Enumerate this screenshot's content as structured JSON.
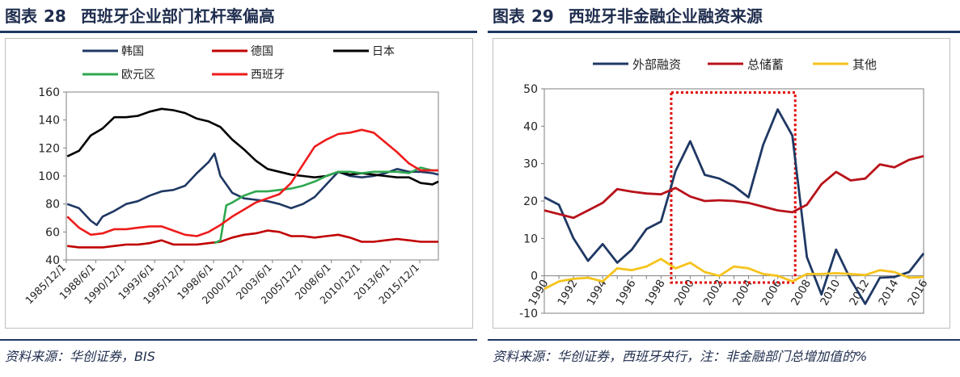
{
  "figure28": {
    "title_prefix": "图表",
    "number": "28",
    "title": "西班牙企业部门杠杆率偏高",
    "source": "资料来源：华创证券，BIS"
  },
  "figure29": {
    "title_prefix": "图表",
    "number": "29",
    "title": "西班牙非金融企业融资来源",
    "source": "资料来源：华创证券，西班牙央行，注：非金融部门总增加值的%"
  },
  "chart_data": [
    {
      "type": "line",
      "ylim": [
        40,
        160
      ],
      "yticks": [
        40,
        60,
        80,
        100,
        120,
        140,
        160
      ],
      "xlim": [
        1985.92,
        2017.5
      ],
      "xtick_labels": [
        "1985/12/1",
        "1988/6/1",
        "1990/12/1",
        "1993/6/1",
        "1995/12/1",
        "1998/6/1",
        "2000/12/1",
        "2003/6/1",
        "2005/12/1",
        "2008/6/1",
        "2010/12/1",
        "2013/6/1",
        "2015/12/1"
      ],
      "xtick_values": [
        1985.92,
        1988.42,
        1990.92,
        1993.42,
        1995.92,
        1998.42,
        2000.92,
        2003.42,
        2005.92,
        2008.42,
        2010.92,
        2013.42,
        2015.92
      ],
      "legend": [
        {
          "name": "韩国",
          "color": "#1f3864"
        },
        {
          "name": "德国",
          "color": "#c00000"
        },
        {
          "name": "日本",
          "color": "#000000"
        },
        {
          "name": "欧元区",
          "color": "#2ea84f"
        },
        {
          "name": "西班牙",
          "color": "#ee1c1c"
        }
      ],
      "series": [
        {
          "name": "韩国",
          "color": "#1f3864",
          "x": [
            1986,
            1987,
            1988,
            1988.5,
            1989,
            1990,
            1991,
            1992,
            1993,
            1994,
            1995,
            1996,
            1997,
            1998,
            1998.5,
            1999,
            2000,
            2001,
            2002,
            2003,
            2004,
            2005,
            2006,
            2007,
            2008,
            2009,
            2010,
            2011,
            2012,
            2013,
            2014,
            2015,
            2016,
            2017,
            2017.5
          ],
          "values": [
            80,
            77,
            68,
            65,
            71,
            75,
            80,
            82,
            86,
            89,
            90,
            93,
            102,
            110,
            116,
            100,
            88,
            84,
            83,
            82,
            80,
            77,
            80,
            85,
            94,
            103,
            100,
            99,
            100,
            102,
            105,
            103,
            103,
            102,
            101
          ]
        },
        {
          "name": "德国",
          "color": "#c00000",
          "x": [
            1986,
            1987,
            1988,
            1989,
            1990,
            1991,
            1992,
            1993,
            1994,
            1995,
            1996,
            1997,
            1998,
            1999,
            2000,
            2001,
            2002,
            2003,
            2004,
            2005,
            2006,
            2007,
            2008,
            2009,
            2010,
            2011,
            2012,
            2013,
            2014,
            2015,
            2016,
            2017,
            2017.5
          ],
          "values": [
            50,
            49,
            49,
            49,
            50,
            51,
            51,
            52,
            54,
            51,
            51,
            51,
            52,
            53,
            56,
            58,
            59,
            61,
            60,
            57,
            57,
            56,
            57,
            58,
            56,
            53,
            53,
            54,
            55,
            54,
            53,
            53,
            53
          ]
        },
        {
          "name": "日本",
          "color": "#000000",
          "x": [
            1986,
            1987,
            1988,
            1989,
            1990,
            1991,
            1992,
            1993,
            1994,
            1995,
            1996,
            1997,
            1998,
            1999,
            2000,
            2001,
            2002,
            2003,
            2004,
            2005,
            2006,
            2007,
            2008,
            2009,
            2010,
            2011,
            2012,
            2013,
            2014,
            2015,
            2016,
            2017,
            2017.5
          ],
          "values": [
            114,
            118,
            129,
            134,
            142,
            142,
            143,
            146,
            148,
            147,
            145,
            141,
            139,
            135,
            126,
            119,
            111,
            105,
            103,
            101,
            100,
            99,
            100,
            103,
            101,
            102,
            101,
            100,
            99,
            99,
            95,
            94,
            96
          ]
        },
        {
          "name": "欧元区",
          "color": "#2ea84f",
          "x": [
            1998.5,
            1999,
            1999.5,
            2000,
            2001,
            2002,
            2003,
            2004,
            2005,
            2006,
            2007,
            2008,
            2009,
            2010,
            2011,
            2012,
            2013,
            2014,
            2015,
            2016,
            2017,
            2017.5
          ],
          "values": [
            52,
            54,
            79,
            81,
            86,
            89,
            89,
            90,
            91,
            93,
            96,
            100,
            103,
            103,
            102,
            103,
            103,
            103,
            102,
            106,
            104,
            104
          ]
        },
        {
          "name": "西班牙",
          "color": "#ee1c1c",
          "x": [
            1986,
            1987,
            1988,
            1989,
            1990,
            1991,
            1992,
            1993,
            1994,
            1995,
            1996,
            1997,
            1998,
            1999,
            2000,
            2001,
            2002,
            2003,
            2004,
            2005,
            2006,
            2007,
            2008,
            2009,
            2010,
            2011,
            2012,
            2013,
            2014,
            2015,
            2016,
            2017,
            2017.5
          ],
          "values": [
            71,
            63,
            58,
            59,
            62,
            62,
            63,
            64,
            64,
            61,
            58,
            57,
            60,
            65,
            71,
            76,
            81,
            84,
            87,
            95,
            108,
            121,
            126,
            130,
            131,
            133,
            131,
            124,
            117,
            109,
            104,
            104,
            104
          ]
        }
      ]
    },
    {
      "type": "line",
      "ylim": [
        -10,
        50
      ],
      "yticks": [
        -10,
        0,
        10,
        20,
        30,
        40,
        50
      ],
      "x_categories": [
        1990,
        1991,
        1992,
        1993,
        1994,
        1995,
        1996,
        1997,
        1998,
        1999,
        2000,
        2001,
        2002,
        2003,
        2004,
        2005,
        2006,
        2007,
        2008,
        2009,
        2010,
        2011,
        2012,
        2013,
        2014,
        2015,
        2016
      ],
      "xtick_labels": [
        "1990",
        "1992",
        "1994",
        "1996",
        "1998",
        "2000",
        "2002",
        "2004",
        "2006",
        "2008",
        "2010",
        "2012",
        "2014",
        "2016"
      ],
      "legend": [
        {
          "name": "外部融资",
          "color": "#1f3864"
        },
        {
          "name": "总储蓄",
          "color": "#b8121a"
        },
        {
          "name": "其他",
          "color": "#f5c31c"
        }
      ],
      "highlight_box": {
        "from": 1998.7,
        "to": 2007.2,
        "ymin": -1.8,
        "ymax": 49,
        "color": "#e00000"
      },
      "series": [
        {
          "name": "外部融资",
          "color": "#1f3864",
          "values": [
            21,
            19,
            10,
            4,
            8.5,
            3.5,
            7,
            12.5,
            14.5,
            28,
            36,
            27,
            26,
            24,
            21,
            35,
            44.5,
            37.5,
            5,
            -5,
            7,
            -1,
            -7.5,
            -0.5,
            -0.3,
            1,
            6
          ]
        },
        {
          "name": "总储蓄",
          "color": "#b8121a",
          "values": [
            17.5,
            16.5,
            15.5,
            17.5,
            19.5,
            23.2,
            22.5,
            22,
            21.8,
            23.5,
            21.2,
            20,
            20.2,
            20,
            19.5,
            18.5,
            17.5,
            17,
            19,
            24.5,
            27.8,
            25.5,
            26,
            29.8,
            29,
            31,
            32
          ]
        },
        {
          "name": "其他",
          "color": "#f5c31c",
          "values": [
            -3.5,
            -1.5,
            -0.8,
            -0.5,
            -1.5,
            2,
            1.5,
            2.5,
            4.5,
            2,
            3.5,
            1,
            0,
            2.5,
            2,
            0.5,
            0,
            -1.5,
            0.5,
            0.5,
            0.7,
            0.5,
            0.2,
            1.5,
            1,
            -0.5,
            -0.3
          ]
        }
      ]
    }
  ]
}
